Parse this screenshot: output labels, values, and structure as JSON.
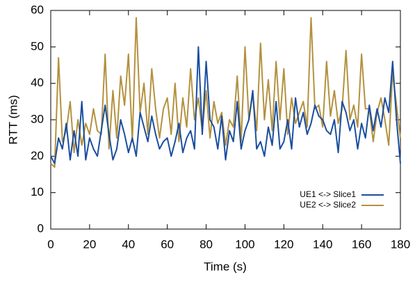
{
  "chart_data": {
    "type": "line",
    "xlabel": "Time (s)",
    "ylabel": "RTT (ms)",
    "x": [
      0,
      2,
      4,
      6,
      8,
      10,
      12,
      14,
      16,
      18,
      20,
      22,
      24,
      26,
      28,
      30,
      32,
      34,
      36,
      38,
      40,
      42,
      44,
      46,
      48,
      50,
      52,
      54,
      56,
      58,
      60,
      62,
      64,
      66,
      68,
      70,
      72,
      74,
      76,
      78,
      80,
      82,
      84,
      86,
      88,
      90,
      92,
      94,
      96,
      98,
      100,
      102,
      104,
      106,
      108,
      110,
      112,
      114,
      116,
      118,
      120,
      122,
      124,
      126,
      128,
      130,
      132,
      134,
      136,
      138,
      140,
      142,
      144,
      146,
      148,
      150,
      152,
      154,
      156,
      158,
      160,
      162,
      164,
      166,
      168,
      170,
      172,
      174,
      176,
      178,
      180
    ],
    "series": [
      {
        "name": "UE1 <-> Slice1",
        "color": "#1a4ea0",
        "values": [
          20,
          18,
          25,
          22,
          29,
          19,
          27,
          20,
          35,
          19,
          25,
          22,
          20,
          27,
          34,
          26,
          19,
          22,
          30,
          26,
          21,
          25,
          20,
          32,
          28,
          24,
          31,
          26,
          22,
          24,
          25,
          20,
          24,
          29,
          21,
          25,
          27,
          22,
          50,
          26,
          46,
          30,
          28,
          22,
          31,
          19,
          27,
          24,
          35,
          22,
          27,
          30,
          38,
          22,
          24,
          20,
          28,
          23,
          35,
          22,
          24,
          30,
          22,
          36,
          28,
          32,
          26,
          29,
          34,
          31,
          30,
          27,
          26,
          30,
          21,
          35,
          32,
          27,
          30,
          22,
          29,
          25,
          34,
          27,
          33,
          28,
          36,
          32,
          46,
          30,
          18
        ]
      },
      {
        "name": "UE2 <-> Slice2",
        "color": "#b3913f",
        "values": [
          18,
          17,
          47,
          24,
          27,
          35,
          21,
          30,
          23,
          29,
          26,
          33,
          27,
          26,
          48,
          22,
          38,
          25,
          42,
          34,
          48,
          24,
          58,
          32,
          40,
          26,
          44,
          33,
          25,
          33,
          36,
          26,
          40,
          24,
          36,
          28,
          44,
          30,
          36,
          27,
          38,
          25,
          35,
          29,
          32,
          23,
          30,
          28,
          42,
          24,
          50,
          30,
          37,
          27,
          51,
          30,
          41,
          27,
          46,
          30,
          44,
          26,
          36,
          29,
          32,
          35,
          28,
          58,
          33,
          34,
          28,
          46,
          31,
          38,
          29,
          33,
          49,
          30,
          34,
          28,
          48,
          33,
          33,
          24,
          32,
          36,
          30,
          23,
          43,
          34,
          25
        ]
      }
    ],
    "xlim": [
      0,
      180
    ],
    "xticks": [
      0,
      20,
      40,
      60,
      80,
      100,
      120,
      140,
      160,
      180
    ],
    "ylim": [
      0,
      60
    ],
    "yticks": [
      0,
      10,
      20,
      30,
      40,
      50,
      60
    ],
    "grid": false,
    "legend": "lower right"
  }
}
